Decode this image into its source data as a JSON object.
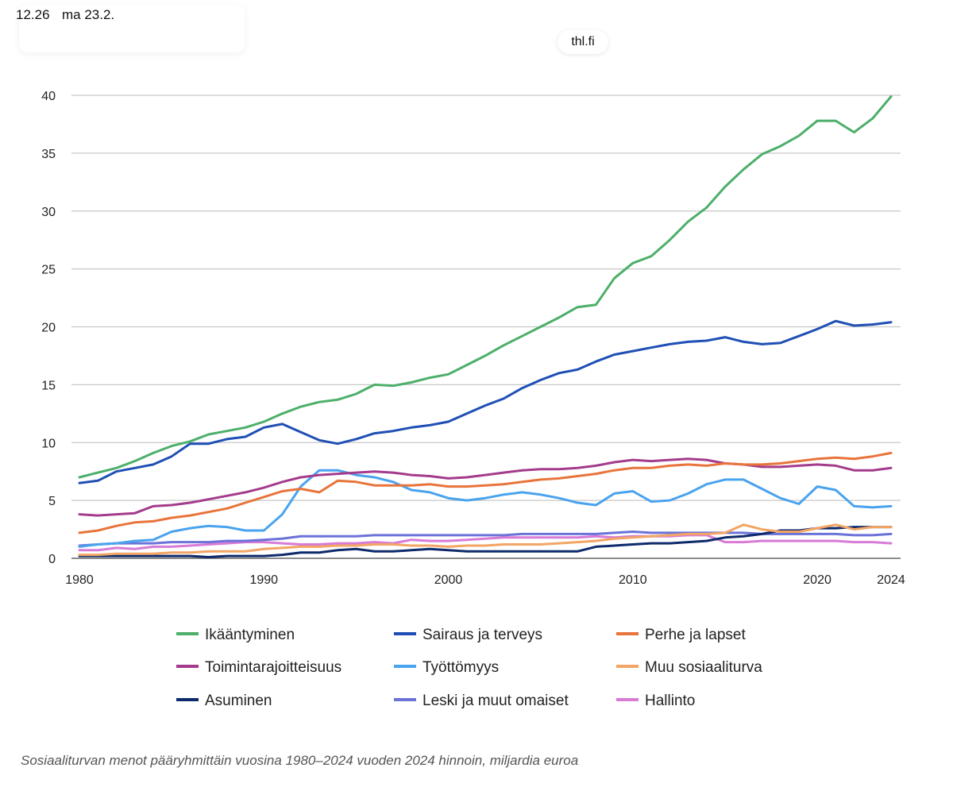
{
  "status": {
    "time": "12.26",
    "date": "ma 23.2."
  },
  "browser": {
    "url": "thl.fi"
  },
  "caption": "Sosiaaliturvan menot pääryhmittäin vuosina 1980–2024 vuoden 2024 hinnoin, miljardia euroa",
  "chart_data": {
    "type": "line",
    "title": "",
    "xlabel": "",
    "ylabel": "",
    "xlim": [
      1980,
      2024
    ],
    "ylim": [
      0,
      40
    ],
    "y_ticks": [
      0,
      5,
      10,
      15,
      20,
      25,
      30,
      35,
      40
    ],
    "x_ticks": [
      1980,
      1990,
      2000,
      2010,
      2020,
      2024
    ],
    "grid": "horizontal",
    "legend_position": "bottom",
    "x": [
      1980,
      1981,
      1982,
      1983,
      1984,
      1985,
      1986,
      1987,
      1988,
      1989,
      1990,
      1991,
      1992,
      1993,
      1994,
      1995,
      1996,
      1997,
      1998,
      1999,
      2000,
      2001,
      2002,
      2003,
      2004,
      2005,
      2006,
      2007,
      2008,
      2009,
      2010,
      2011,
      2012,
      2013,
      2014,
      2015,
      2016,
      2017,
      2018,
      2019,
      2020,
      2021,
      2022,
      2023,
      2024
    ],
    "series": [
      {
        "name": "Ikääntyminen",
        "color": "#4caf6a",
        "values": [
          7.0,
          7.4,
          7.8,
          8.4,
          9.1,
          9.7,
          10.1,
          10.7,
          11.0,
          11.3,
          11.8,
          12.5,
          13.1,
          13.5,
          13.7,
          14.2,
          15.0,
          14.9,
          15.2,
          15.6,
          15.9,
          16.7,
          17.5,
          18.4,
          19.2,
          20.0,
          20.8,
          21.7,
          21.9,
          24.2,
          25.5,
          26.1,
          27.5,
          29.1,
          30.3,
          32.1,
          33.6,
          34.9,
          35.6,
          36.5,
          37.8,
          37.8,
          36.8,
          38.0,
          39.9
        ]
      },
      {
        "name": "Sairaus ja terveys",
        "color": "#1f4fb4",
        "values": [
          6.5,
          6.7,
          7.5,
          7.8,
          8.1,
          8.8,
          9.9,
          9.9,
          10.3,
          10.5,
          11.3,
          11.6,
          10.9,
          10.2,
          9.9,
          10.3,
          10.8,
          11.0,
          11.3,
          11.5,
          11.8,
          12.5,
          13.2,
          13.8,
          14.7,
          15.4,
          16.0,
          16.3,
          17.0,
          17.6,
          17.9,
          18.2,
          18.5,
          18.7,
          18.8,
          19.1,
          18.7,
          18.5,
          18.6,
          19.2,
          19.8,
          20.5,
          20.1,
          20.2,
          20.4
        ]
      },
      {
        "name": "Perhe ja lapset",
        "color": "#e8743b",
        "values": [
          2.2,
          2.4,
          2.8,
          3.1,
          3.2,
          3.5,
          3.7,
          4.0,
          4.3,
          4.8,
          5.3,
          5.8,
          6.0,
          5.7,
          6.7,
          6.6,
          6.3,
          6.3,
          6.3,
          6.4,
          6.2,
          6.2,
          6.3,
          6.4,
          6.6,
          6.8,
          6.9,
          7.1,
          7.3,
          7.6,
          7.8,
          7.8,
          8.0,
          8.1,
          8.0,
          8.2,
          8.1,
          8.1,
          8.2,
          8.4,
          8.6,
          8.7,
          8.6,
          8.8,
          9.1
        ]
      },
      {
        "name": "Toimintarajoitteisuus",
        "color": "#a43b8c",
        "values": [
          3.8,
          3.7,
          3.8,
          3.9,
          4.5,
          4.6,
          4.8,
          5.1,
          5.4,
          5.7,
          6.1,
          6.6,
          7.0,
          7.2,
          7.3,
          7.4,
          7.5,
          7.4,
          7.2,
          7.1,
          6.9,
          7.0,
          7.2,
          7.4,
          7.6,
          7.7,
          7.7,
          7.8,
          8.0,
          8.3,
          8.5,
          8.4,
          8.5,
          8.6,
          8.5,
          8.2,
          8.1,
          7.9,
          7.9,
          8.0,
          8.1,
          8.0,
          7.6,
          7.6,
          7.8
        ]
      },
      {
        "name": "Työttömyys",
        "color": "#4aa3ee",
        "values": [
          1.0,
          1.2,
          1.3,
          1.5,
          1.6,
          2.3,
          2.6,
          2.8,
          2.7,
          2.4,
          2.4,
          3.8,
          6.2,
          7.6,
          7.6,
          7.2,
          7.0,
          6.6,
          5.9,
          5.7,
          5.2,
          5.0,
          5.2,
          5.5,
          5.7,
          5.5,
          5.2,
          4.8,
          4.6,
          5.6,
          5.8,
          4.9,
          5.0,
          5.6,
          6.4,
          6.8,
          6.8,
          6.0,
          5.2,
          4.7,
          6.2,
          5.9,
          4.5,
          4.4,
          4.5
        ]
      },
      {
        "name": "Muu sosiaaliturva",
        "color": "#f2a564",
        "values": [
          0.3,
          0.3,
          0.4,
          0.4,
          0.4,
          0.5,
          0.5,
          0.6,
          0.6,
          0.6,
          0.8,
          0.9,
          1.0,
          1.0,
          1.1,
          1.1,
          1.2,
          1.2,
          1.1,
          1.1,
          1.0,
          1.1,
          1.1,
          1.2,
          1.2,
          1.2,
          1.3,
          1.4,
          1.5,
          1.7,
          1.8,
          1.9,
          2.0,
          2.1,
          2.1,
          2.2,
          2.9,
          2.5,
          2.3,
          2.3,
          2.6,
          2.9,
          2.5,
          2.7,
          2.7
        ]
      },
      {
        "name": "Asuminen",
        "color": "#0e2a6b",
        "values": [
          0.2,
          0.2,
          0.2,
          0.2,
          0.2,
          0.2,
          0.2,
          0.1,
          0.2,
          0.2,
          0.2,
          0.3,
          0.5,
          0.5,
          0.7,
          0.8,
          0.6,
          0.6,
          0.7,
          0.8,
          0.7,
          0.6,
          0.6,
          0.6,
          0.6,
          0.6,
          0.6,
          0.6,
          1.0,
          1.1,
          1.2,
          1.3,
          1.3,
          1.4,
          1.5,
          1.8,
          1.9,
          2.1,
          2.4,
          2.4,
          2.6,
          2.6,
          2.7,
          2.7,
          2.7
        ]
      },
      {
        "name": "Leski ja muut omaiset",
        "color": "#6b72d8",
        "values": [
          1.1,
          1.2,
          1.3,
          1.3,
          1.3,
          1.4,
          1.4,
          1.4,
          1.5,
          1.5,
          1.6,
          1.7,
          1.9,
          1.9,
          1.9,
          1.9,
          2.0,
          2.0,
          2.0,
          2.0,
          2.0,
          2.0,
          2.0,
          2.0,
          2.1,
          2.1,
          2.1,
          2.1,
          2.1,
          2.2,
          2.3,
          2.2,
          2.2,
          2.2,
          2.2,
          2.2,
          2.2,
          2.1,
          2.1,
          2.1,
          2.1,
          2.1,
          2.0,
          2.0,
          2.1
        ]
      },
      {
        "name": "Hallinto",
        "color": "#d77bd6",
        "values": [
          0.7,
          0.7,
          0.9,
          0.8,
          1.0,
          1.0,
          1.1,
          1.2,
          1.3,
          1.4,
          1.4,
          1.3,
          1.2,
          1.2,
          1.3,
          1.3,
          1.4,
          1.3,
          1.6,
          1.5,
          1.5,
          1.6,
          1.7,
          1.8,
          1.8,
          1.8,
          1.8,
          1.8,
          1.9,
          1.8,
          1.9,
          1.9,
          1.9,
          2.0,
          2.0,
          1.4,
          1.4,
          1.5,
          1.5,
          1.5,
          1.5,
          1.5,
          1.4,
          1.4,
          1.3
        ]
      }
    ]
  }
}
